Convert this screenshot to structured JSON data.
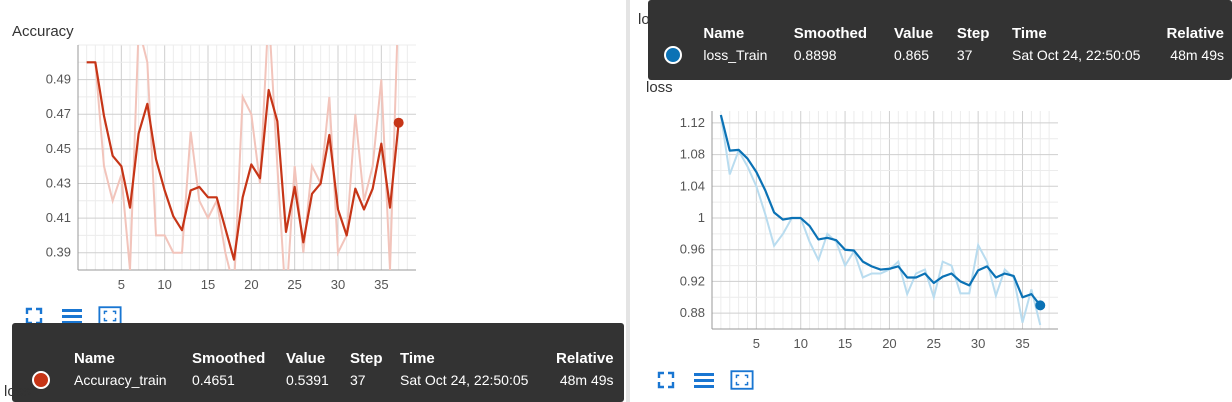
{
  "chart_data": [
    {
      "type": "line",
      "title": "Accuracy",
      "xlim": [
        0,
        39
      ],
      "ylim": [
        0.38,
        0.51
      ],
      "x_ticks": [
        5,
        10,
        15,
        20,
        25,
        30,
        35
      ],
      "y_ticks": [
        0.39,
        0.41,
        0.43,
        0.45,
        0.47,
        0.49
      ],
      "y_tick_labels": [
        "0.39",
        "0.41",
        "0.43",
        "0.45",
        "0.47",
        "0.49"
      ],
      "grid": true,
      "colors": {
        "smoothed": "#c63517",
        "raw": "#f2c4bb"
      },
      "series": [
        {
          "name": "Accuracy_train",
          "smoothed": {
            "x": [
              1,
              2,
              3,
              4,
              5,
              6,
              7,
              8,
              9,
              10,
              11,
              12,
              13,
              14,
              15,
              16,
              17,
              18,
              19,
              20,
              21,
              22,
              23,
              24,
              25,
              26,
              27,
              28,
              29,
              30,
              31,
              32,
              33,
              34,
              35,
              36,
              37
            ],
            "y": [
              0.5,
              0.5,
              0.469,
              0.446,
              0.44,
              0.416,
              0.459,
              0.476,
              0.444,
              0.426,
              0.411,
              0.403,
              0.426,
              0.428,
              0.422,
              0.422,
              0.404,
              0.386,
              0.422,
              0.441,
              0.433,
              0.484,
              0.466,
              0.402,
              0.428,
              0.396,
              0.424,
              0.43,
              0.458,
              0.415,
              0.4,
              0.427,
              0.415,
              0.427,
              0.453,
              0.416,
              0.4651
            ]
          },
          "raw": {
            "x": [
              1,
              2,
              3,
              4,
              5,
              6,
              7,
              8,
              9,
              10,
              11,
              12,
              13,
              14,
              15,
              16,
              17,
              18,
              19,
              20,
              21,
              22,
              23,
              24,
              25,
              26,
              27,
              28,
              29,
              30,
              31,
              32,
              33,
              34,
              35,
              36,
              37
            ],
            "y": [
              0.5,
              0.5,
              0.44,
              0.42,
              0.435,
              0.38,
              0.52,
              0.5,
              0.4,
              0.4,
              0.39,
              0.39,
              0.46,
              0.42,
              0.41,
              0.42,
              0.39,
              0.37,
              0.48,
              0.47,
              0.43,
              0.53,
              0.44,
              0.36,
              0.44,
              0.39,
              0.44,
              0.43,
              0.48,
              0.39,
              0.4,
              0.47,
              0.42,
              0.44,
              0.49,
              0.38,
              0.5391
            ]
          }
        }
      ],
      "tooltip": {
        "headers": {
          "name": "Name",
          "smoothed": "Smoothed",
          "value": "Value",
          "step": "Step",
          "time": "Time",
          "relative": "Relative"
        },
        "name": "Accuracy_train",
        "smoothed": "0.4651",
        "value": "0.5391",
        "step": "37",
        "time": "Sat Oct 24, 22:50:05",
        "relative": "48m 49s",
        "dot_color": "#c63517"
      }
    },
    {
      "type": "line",
      "title": "loss",
      "xlim": [
        0,
        39
      ],
      "ylim": [
        0.86,
        1.135
      ],
      "x_ticks": [
        5,
        10,
        15,
        20,
        25,
        30,
        35
      ],
      "y_ticks": [
        0.88,
        0.92,
        0.96,
        1,
        1.04,
        1.08,
        1.12
      ],
      "y_tick_labels": [
        "0.88",
        "0.92",
        "0.96",
        "1",
        "1.04",
        "1.08",
        "1.12"
      ],
      "grid": true,
      "colors": {
        "smoothed": "#0b72b5",
        "raw": "#b9dcef"
      },
      "series": [
        {
          "name": "loss_Train",
          "smoothed": {
            "x": [
              1,
              2,
              3,
              4,
              5,
              6,
              7,
              8,
              9,
              10,
              11,
              12,
              13,
              14,
              15,
              16,
              17,
              18,
              19,
              20,
              21,
              22,
              23,
              24,
              25,
              26,
              27,
              28,
              29,
              30,
              31,
              32,
              33,
              34,
              35,
              36,
              37
            ],
            "y": [
              1.13,
              1.085,
              1.086,
              1.075,
              1.058,
              1.035,
              1.007,
              0.998,
              1.0,
              1.0,
              0.99,
              0.973,
              0.975,
              0.972,
              0.96,
              0.959,
              0.945,
              0.939,
              0.935,
              0.936,
              0.939,
              0.925,
              0.925,
              0.93,
              0.918,
              0.926,
              0.93,
              0.92,
              0.915,
              0.934,
              0.939,
              0.925,
              0.93,
              0.927,
              0.9,
              0.904,
              0.8898
            ]
          },
          "raw": {
            "x": [
              1,
              2,
              3,
              4,
              5,
              6,
              7,
              8,
              9,
              10,
              11,
              12,
              13,
              14,
              15,
              16,
              17,
              18,
              19,
              20,
              21,
              22,
              23,
              24,
              25,
              26,
              27,
              28,
              29,
              30,
              31,
              32,
              33,
              34,
              35,
              36,
              37
            ],
            "y": [
              1.13,
              1.055,
              1.085,
              1.065,
              1.04,
              1.005,
              0.965,
              0.98,
              1.0,
              1.0,
              0.97,
              0.947,
              0.98,
              0.97,
              0.94,
              0.958,
              0.925,
              0.93,
              0.93,
              0.935,
              0.945,
              0.904,
              0.93,
              0.935,
              0.9,
              0.945,
              0.94,
              0.905,
              0.905,
              0.966,
              0.945,
              0.902,
              0.935,
              0.925,
              0.868,
              0.91,
              0.865
            ]
          }
        }
      ],
      "tooltip": {
        "headers": {
          "name": "Name",
          "smoothed": "Smoothed",
          "value": "Value",
          "step": "Step",
          "time": "Time",
          "relative": "Relative"
        },
        "name": "loss_Train",
        "smoothed": "0.8898",
        "value": "0.865",
        "step": "37",
        "time": "Sat Oct 24, 22:50:05",
        "relative": "48m 49s",
        "dot_color": "#0b72b5"
      }
    }
  ],
  "footer": {
    "next_title": "loss"
  },
  "icons": [
    "fullscreen-icon",
    "list-icon",
    "fit-domain-icon"
  ]
}
